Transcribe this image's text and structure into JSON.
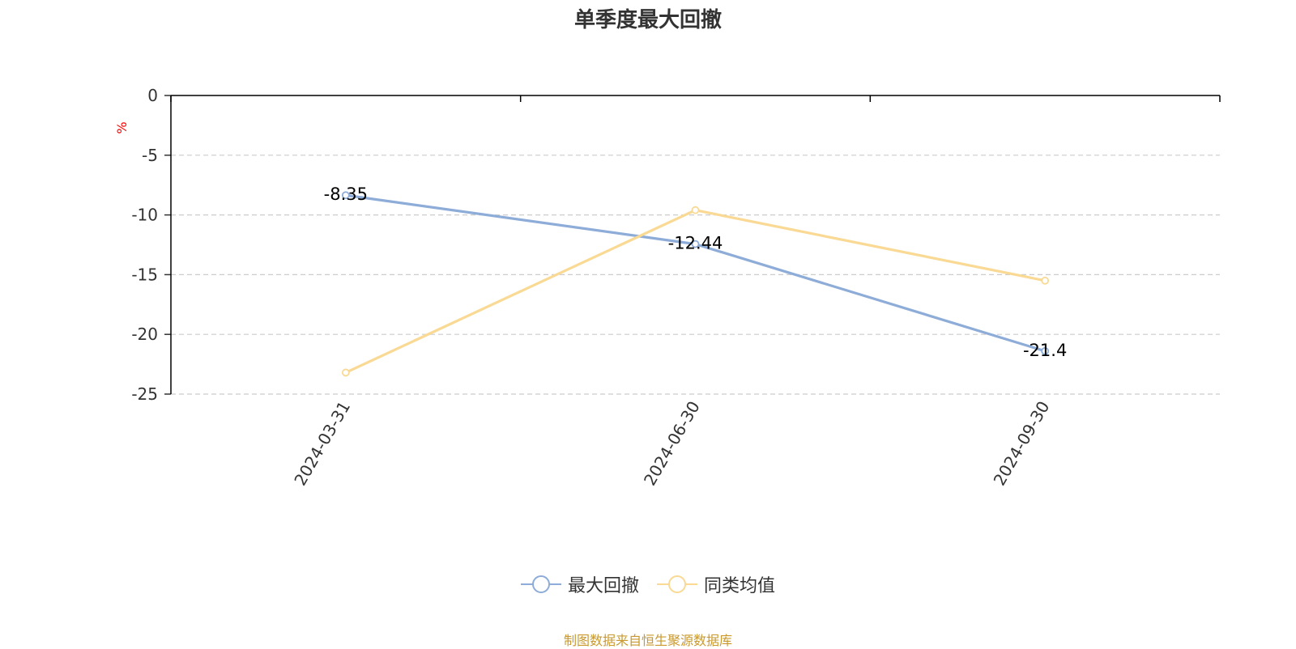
{
  "chart_data": {
    "type": "line",
    "title": "单季度最大回撤",
    "ylabel": "%",
    "categories": [
      "2024-03-31",
      "2024-06-30",
      "2024-09-30"
    ],
    "ylim": [
      -25,
      0
    ],
    "yticks": [
      0,
      -5,
      -10,
      -15,
      -20,
      -25
    ],
    "grid": true,
    "legend_position": "bottom",
    "series": [
      {
        "name": "最大回撤",
        "values": [
          -8.35,
          -12.44,
          -21.4
        ],
        "color": "#8eacd8",
        "show_labels": true
      },
      {
        "name": "同类均值",
        "values": [
          -23.2,
          -9.6,
          -15.5
        ],
        "color": "#f9d993",
        "show_labels": false
      }
    ]
  },
  "footer": {
    "source": "制图数据来自恒生聚源数据库"
  },
  "colors": {
    "unit": "#ff0000",
    "source": "#c9992f",
    "axis": "#333333",
    "grid": "#cccccc"
  }
}
